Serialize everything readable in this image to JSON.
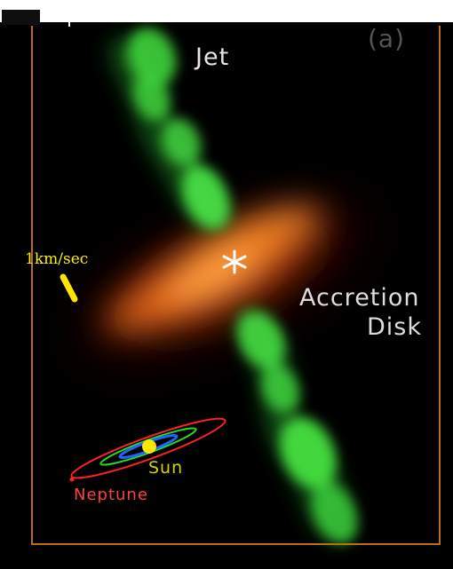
{
  "panel_label": "(a)",
  "labels": {
    "jet": "Jet",
    "accretion": "Accretion",
    "disk": "Disk",
    "speed": "1km/sec",
    "sun": "Sun",
    "neptune": "Neptune"
  },
  "colors": {
    "background": "#000000",
    "frame": "#b86f1d",
    "jet": "#3dd93c",
    "disk": "#ff7a1a",
    "sun": "#ffe600",
    "neptune": "#ff2020",
    "orbit_green": "#22dd22",
    "orbit_blue": "#1e66ff",
    "label_white": "#e7e7e7",
    "speed_bar": "#ffe600"
  }
}
